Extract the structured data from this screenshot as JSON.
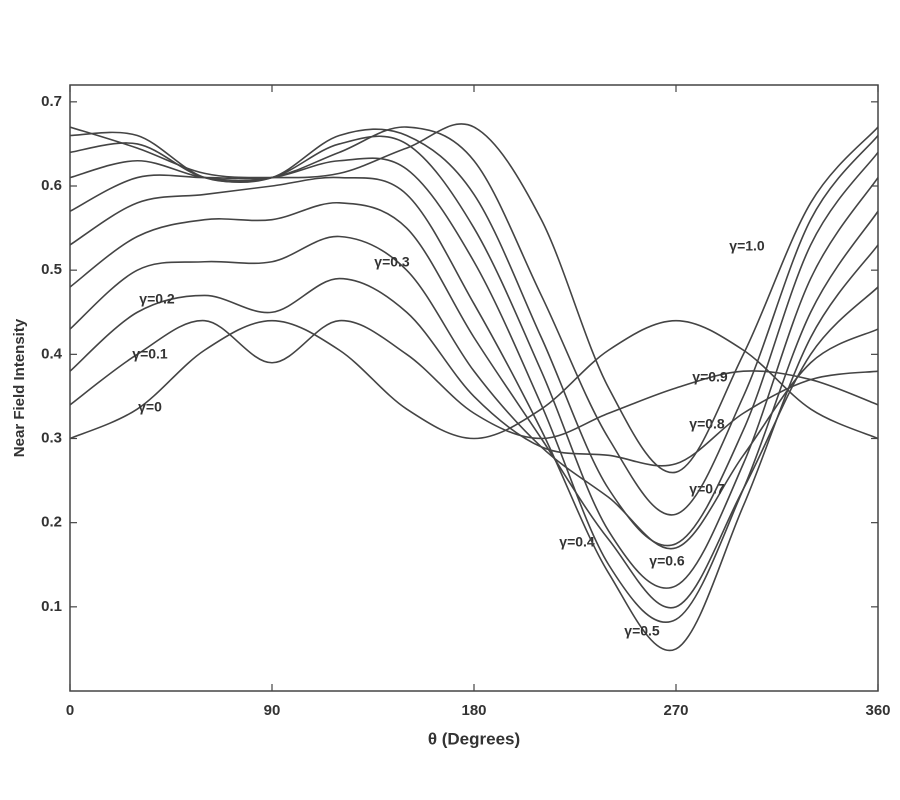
{
  "chart_data": {
    "type": "line",
    "x_label": "θ  (Degrees)",
    "y_label": "Near Field Intensity",
    "x": [
      0,
      30,
      60,
      90,
      120,
      150,
      180,
      210,
      240,
      270,
      300,
      330,
      360
    ],
    "xlim": [
      0,
      360
    ],
    "xticks": [
      0,
      90,
      180,
      270,
      360
    ],
    "ylim": [
      0,
      0.72
    ],
    "yticks": [
      0.1,
      0.2,
      0.3,
      0.4,
      0.5,
      0.6,
      0.7
    ],
    "color": "#444444",
    "series": [
      {
        "name": "γ=0",
        "values": [
          0.3,
          0.335,
          0.405,
          0.44,
          0.405,
          0.335,
          0.3,
          0.335,
          0.405,
          0.44,
          0.405,
          0.335,
          0.3
        ]
      },
      {
        "name": "γ=0.1",
        "values": [
          0.34,
          0.4,
          0.44,
          0.39,
          0.44,
          0.4,
          0.33,
          0.3,
          0.33,
          0.36,
          0.38,
          0.37,
          0.34
        ]
      },
      {
        "name": "γ=0.2",
        "values": [
          0.38,
          0.45,
          0.47,
          0.45,
          0.49,
          0.45,
          0.35,
          0.29,
          0.28,
          0.27,
          0.33,
          0.37,
          0.38
        ]
      },
      {
        "name": "γ=0.3",
        "values": [
          0.43,
          0.5,
          0.51,
          0.51,
          0.54,
          0.5,
          0.38,
          0.29,
          0.23,
          0.17,
          0.28,
          0.39,
          0.43
        ]
      },
      {
        "name": "γ=0.4",
        "values": [
          0.48,
          0.54,
          0.56,
          0.56,
          0.58,
          0.55,
          0.42,
          0.3,
          0.18,
          0.1,
          0.24,
          0.4,
          0.48
        ]
      },
      {
        "name": "γ=0.5",
        "values": [
          0.53,
          0.58,
          0.59,
          0.6,
          0.61,
          0.59,
          0.46,
          0.31,
          0.14,
          0.05,
          0.22,
          0.42,
          0.53
        ]
      },
      {
        "name": "γ=0.6",
        "values": [
          0.57,
          0.61,
          0.61,
          0.61,
          0.63,
          0.62,
          0.51,
          0.34,
          0.15,
          0.085,
          0.24,
          0.45,
          0.57
        ]
      },
      {
        "name": "γ=0.7",
        "values": [
          0.61,
          0.63,
          0.61,
          0.61,
          0.65,
          0.65,
          0.55,
          0.38,
          0.19,
          0.125,
          0.27,
          0.49,
          0.61
        ]
      },
      {
        "name": "γ=0.8",
        "values": [
          0.64,
          0.65,
          0.61,
          0.61,
          0.66,
          0.66,
          0.59,
          0.42,
          0.24,
          0.175,
          0.31,
          0.53,
          0.64
        ]
      },
      {
        "name": "γ=0.9",
        "values": [
          0.66,
          0.66,
          0.61,
          0.61,
          0.64,
          0.67,
          0.63,
          0.47,
          0.3,
          0.21,
          0.35,
          0.56,
          0.66
        ]
      },
      {
        "name": "γ=1.0",
        "values": [
          0.67,
          0.645,
          0.615,
          0.61,
          0.615,
          0.645,
          0.67,
          0.56,
          0.36,
          0.26,
          0.4,
          0.58,
          0.67
        ]
      }
    ]
  }
}
